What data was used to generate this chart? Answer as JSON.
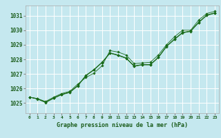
{
  "title": "Graphe pression niveau de la mer (hPa)",
  "bg_color": "#c5e8ef",
  "grid_color": "#ffffff",
  "line_color": "#1a6b1a",
  "marker_color": "#1a6b1a",
  "text_color": "#1a5c1a",
  "xlim": [
    -0.5,
    23.5
  ],
  "ylim": [
    1024.3,
    1031.7
  ],
  "yticks": [
    1025,
    1026,
    1027,
    1028,
    1029,
    1030,
    1031
  ],
  "xticks": [
    0,
    1,
    2,
    3,
    4,
    5,
    6,
    7,
    8,
    9,
    10,
    11,
    12,
    13,
    14,
    15,
    16,
    17,
    18,
    19,
    20,
    21,
    22,
    23
  ],
  "series": [
    [
      1025.4,
      1025.3,
      1025.1,
      1025.4,
      1025.6,
      1025.8,
      1026.3,
      1026.7,
      1027.0,
      1027.5,
      1028.55,
      1028.5,
      1028.3,
      1027.7,
      1027.75,
      1027.8,
      1028.3,
      1029.0,
      1029.55,
      1030.0,
      1030.0,
      1030.7,
      1031.15,
      1031.3
    ],
    [
      1025.4,
      1025.3,
      1025.05,
      1025.35,
      1025.6,
      1025.75,
      1026.2,
      1026.9,
      1027.3,
      1027.8,
      1028.45,
      1028.3,
      1028.1,
      1027.55,
      1027.65,
      1027.65,
      1028.15,
      1028.9,
      1029.4,
      1029.85,
      1029.95,
      1030.55,
      1031.05,
      1031.2
    ],
    [
      1025.4,
      1025.3,
      1025.05,
      1025.35,
      1025.6,
      1025.75,
      1026.2,
      1026.9,
      1027.3,
      1027.8,
      1028.45,
      1028.3,
      1028.1,
      1027.55,
      1027.65,
      1027.65,
      1028.15,
      1028.9,
      1029.4,
      1029.85,
      1029.95,
      1030.55,
      1031.05,
      1031.2
    ],
    [
      1025.4,
      1025.3,
      1025.05,
      1025.35,
      1025.6,
      1025.75,
      1026.2,
      1026.9,
      1027.3,
      1027.8,
      1028.45,
      1028.3,
      1028.1,
      1027.55,
      1027.65,
      1027.65,
      1028.15,
      1028.9,
      1029.4,
      1029.85,
      1029.95,
      1030.55,
      1031.05,
      1031.2
    ]
  ],
  "series_with_markers": [
    {
      "x": [
        0,
        1,
        2,
        3,
        4,
        5,
        6,
        7,
        8,
        9,
        10,
        11,
        12,
        13,
        14,
        15,
        16,
        17,
        18,
        19,
        20,
        21,
        22,
        23
      ],
      "y": [
        1025.4,
        1025.3,
        1025.1,
        1025.4,
        1025.6,
        1025.8,
        1026.3,
        1026.7,
        1027.0,
        1027.5,
        1028.55,
        1028.5,
        1028.3,
        1027.7,
        1027.75,
        1027.8,
        1028.3,
        1029.0,
        1029.55,
        1030.0,
        1030.0,
        1030.7,
        1031.15,
        1031.3
      ]
    },
    {
      "x": [
        0,
        1,
        2,
        3,
        4,
        5,
        6,
        7,
        8,
        9,
        10,
        11,
        12,
        13,
        14,
        15,
        16,
        17,
        18,
        19,
        20,
        21,
        22,
        23
      ],
      "y": [
        1025.4,
        1025.25,
        1025.05,
        1025.35,
        1025.55,
        1025.75,
        1026.2,
        1026.85,
        1027.25,
        1027.75,
        1028.4,
        1028.25,
        1028.05,
        1027.5,
        1027.6,
        1027.6,
        1028.1,
        1028.85,
        1029.35,
        1029.8,
        1029.9,
        1030.5,
        1031.0,
        1031.15
      ]
    },
    {
      "x": [
        0,
        1,
        2,
        3,
        4,
        5,
        6,
        7,
        8,
        9,
        10,
        11,
        12,
        13,
        14,
        15,
        16,
        17,
        18,
        19,
        20,
        21,
        22,
        23
      ],
      "y": [
        1025.4,
        1025.25,
        1025.05,
        1025.35,
        1025.55,
        1025.75,
        1026.2,
        1026.85,
        1027.25,
        1027.75,
        1028.4,
        1028.25,
        1028.05,
        1027.5,
        1027.6,
        1027.6,
        1028.1,
        1028.85,
        1029.35,
        1029.8,
        1029.9,
        1030.5,
        1031.0,
        1031.15
      ]
    },
    {
      "x": [
        0,
        1,
        2,
        3,
        4,
        5,
        6,
        7,
        8,
        9,
        10,
        11,
        12,
        13,
        14,
        15,
        16,
        17,
        18,
        19,
        20,
        21,
        22,
        23
      ],
      "y": [
        1025.4,
        1025.25,
        1025.05,
        1025.35,
        1025.55,
        1025.75,
        1026.2,
        1026.85,
        1027.25,
        1027.75,
        1028.4,
        1028.25,
        1028.05,
        1027.5,
        1027.6,
        1027.6,
        1028.1,
        1028.85,
        1029.35,
        1029.8,
        1029.9,
        1030.5,
        1031.0,
        1031.15
      ]
    }
  ],
  "line1": [
    1025.4,
    1025.3,
    1025.1,
    1025.4,
    1025.65,
    1025.8,
    1026.3,
    1026.75,
    1027.05,
    1027.55,
    1028.6,
    1028.5,
    1028.3,
    1027.7,
    1027.75,
    1027.8,
    1028.3,
    1029.0,
    1029.55,
    1030.0,
    1030.0,
    1030.7,
    1031.15,
    1031.3
  ],
  "line2": [
    1025.4,
    1025.3,
    1025.05,
    1025.35,
    1025.6,
    1025.75,
    1026.2,
    1026.9,
    1027.3,
    1027.8,
    1028.45,
    1028.3,
    1028.1,
    1027.55,
    1027.65,
    1027.65,
    1028.15,
    1028.9,
    1029.4,
    1029.85,
    1029.95,
    1030.55,
    1031.05,
    1031.2
  ],
  "line3": [
    1025.4,
    1025.3,
    1025.05,
    1025.35,
    1025.6,
    1025.75,
    1026.2,
    1026.9,
    1027.3,
    1027.8,
    1028.45,
    1028.3,
    1028.1,
    1027.55,
    1027.65,
    1027.65,
    1028.15,
    1028.9,
    1029.4,
    1029.85,
    1029.95,
    1030.55,
    1031.05,
    1031.2
  ],
  "line4": [
    1025.4,
    1025.3,
    1025.05,
    1025.35,
    1025.6,
    1025.75,
    1026.2,
    1026.9,
    1027.3,
    1027.8,
    1028.45,
    1028.3,
    1028.1,
    1027.55,
    1027.65,
    1027.65,
    1028.15,
    1028.9,
    1029.4,
    1029.85,
    1029.95,
    1030.55,
    1031.05,
    1031.2
  ]
}
